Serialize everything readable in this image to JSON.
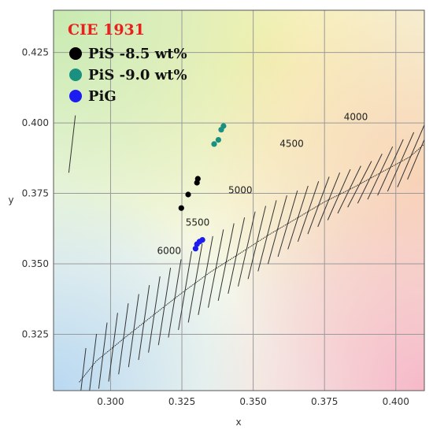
{
  "chart_data": {
    "type": "scatter",
    "title": "CIE 1931",
    "title_color": "#e8201c",
    "xlabel": "x",
    "ylabel": "y",
    "xlim": [
      0.28,
      0.41
    ],
    "ylim": [
      0.305,
      0.44
    ],
    "x_ticks": [
      "0.300",
      "0.325",
      "0.350",
      "0.375",
      "0.400"
    ],
    "y_ticks": [
      "0.325",
      "0.350",
      "0.375",
      "0.400",
      "0.425"
    ],
    "x_tick_values": [
      0.3,
      0.325,
      0.35,
      0.375,
      0.4
    ],
    "y_tick_values": [
      0.325,
      0.35,
      0.375,
      0.4,
      0.425
    ],
    "grid": true,
    "legend_position": "top-left",
    "series": [
      {
        "name": "PiS -8.5 wt%",
        "color": "#000000",
        "points": [
          [
            0.3248,
            0.3698
          ],
          [
            0.3272,
            0.3746
          ],
          [
            0.3303,
            0.3788
          ],
          [
            0.3306,
            0.3802
          ]
        ]
      },
      {
        "name": "PiS -9.0 wt%",
        "color": "#1a9080",
        "points": [
          [
            0.3363,
            0.3925
          ],
          [
            0.3378,
            0.394
          ],
          [
            0.3388,
            0.3976
          ],
          [
            0.3396,
            0.3989
          ]
        ]
      },
      {
        "name": "PiG",
        "color": "#1c1cf0",
        "points": [
          [
            0.3298,
            0.3554
          ],
          [
            0.3303,
            0.357
          ],
          [
            0.3312,
            0.3579
          ],
          [
            0.3322,
            0.3585
          ]
        ]
      }
    ],
    "planckian_locus": [
      [
        0.289,
        0.308
      ],
      [
        0.295,
        0.3155
      ],
      [
        0.305,
        0.3238
      ],
      [
        0.315,
        0.3318
      ],
      [
        0.325,
        0.3397
      ],
      [
        0.335,
        0.3471
      ],
      [
        0.345,
        0.3535
      ],
      [
        0.355,
        0.36
      ],
      [
        0.365,
        0.366
      ],
      [
        0.375,
        0.372
      ],
      [
        0.385,
        0.377
      ],
      [
        0.395,
        0.3825
      ],
      [
        0.405,
        0.388
      ],
      [
        0.41,
        0.3925
      ]
    ],
    "cct_labels": [
      {
        "text": "6000",
        "x": 0.3205,
        "y": 0.3535
      },
      {
        "text": "5500",
        "x": 0.3305,
        "y": 0.3635
      },
      {
        "text": "5000",
        "x": 0.3455,
        "y": 0.375
      },
      {
        "text": "4500",
        "x": 0.3635,
        "y": 0.3915
      },
      {
        "text": "4000",
        "x": 0.386,
        "y": 0.401
      }
    ]
  }
}
